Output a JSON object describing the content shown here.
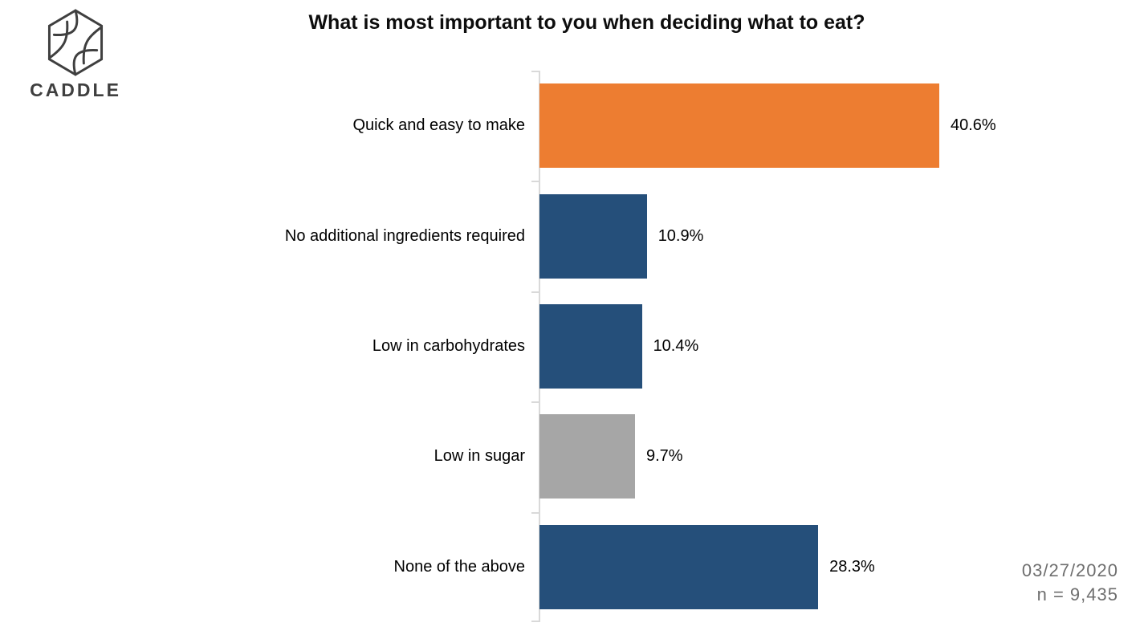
{
  "logo": {
    "text": "CADDLE"
  },
  "title": "What is most important to you when deciding what to eat?",
  "chart_data": {
    "type": "bar",
    "orientation": "horizontal",
    "title": "What is most important to you when deciding what to eat?",
    "categories": [
      "Quick and easy to make",
      "No additional ingredients required",
      "Low in carbohydrates",
      "Low in sugar",
      "None of the above"
    ],
    "values": [
      40.6,
      10.9,
      10.4,
      9.7,
      28.3
    ],
    "value_labels": [
      "40.6%",
      "10.9%",
      "10.4%",
      "9.7%",
      "28.3%"
    ],
    "bar_colors": [
      "#ED7D31",
      "#254F7A",
      "#254F7A",
      "#A6A6A6",
      "#254F7A"
    ],
    "xlabel": "",
    "ylabel": "",
    "xlim": [
      0,
      44
    ],
    "grid": false,
    "legend": false,
    "axis_color": "#D9D9D9"
  },
  "footer": {
    "date": "03/27/2020",
    "sample_size": "n = 9,435"
  },
  "colors": {
    "accent_orange": "#ED7D31",
    "accent_blue": "#254F7A",
    "accent_gray": "#A6A6A6",
    "axis": "#D9D9D9",
    "footer_text": "#6E6E6E",
    "logo": "#3F3F3F"
  }
}
